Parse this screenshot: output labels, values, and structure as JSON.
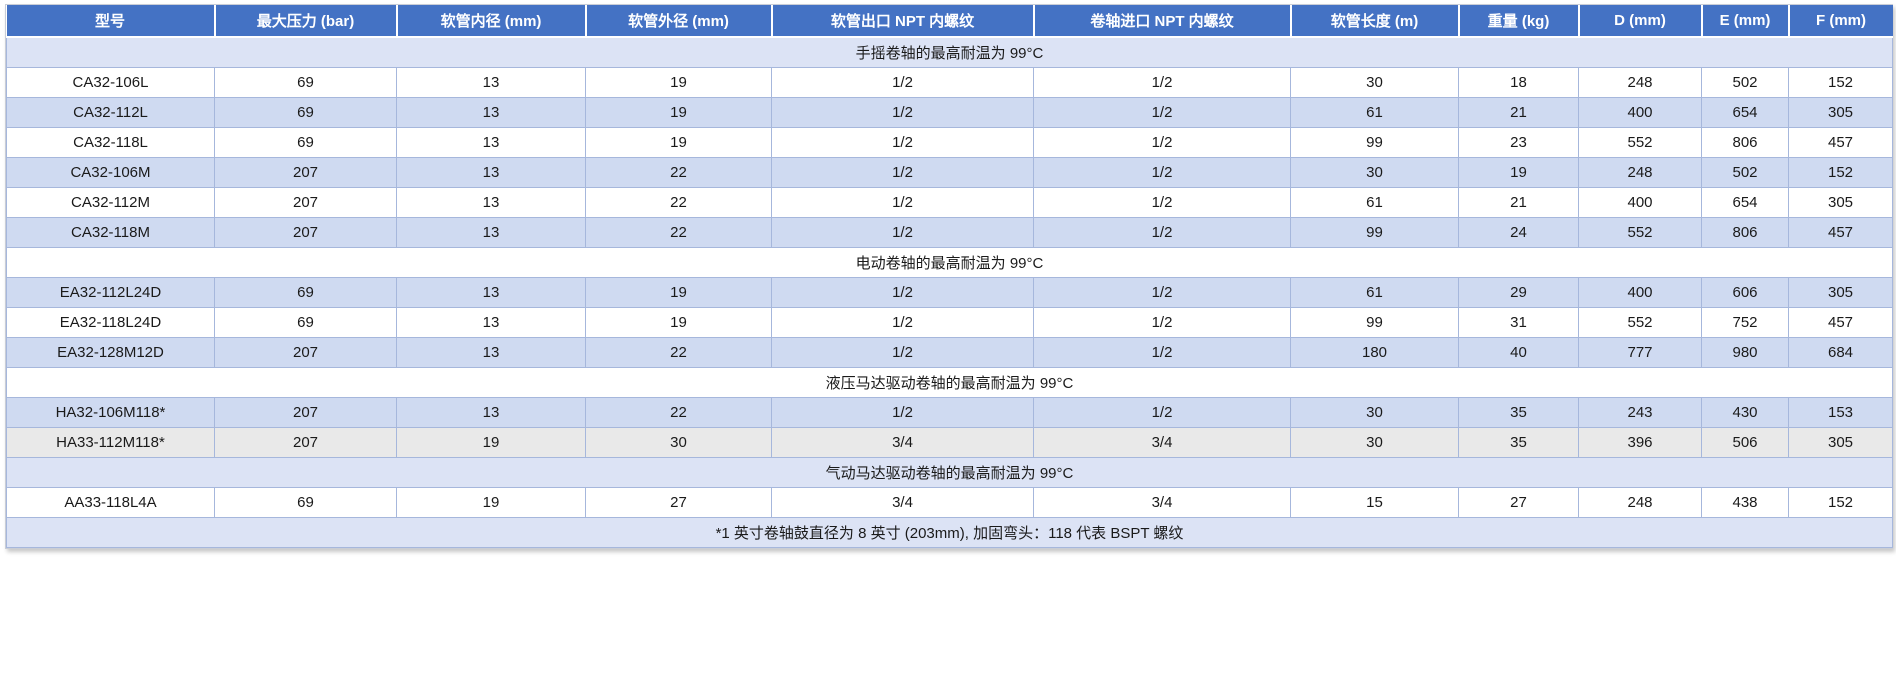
{
  "colors": {
    "header_bg": "#4472C4",
    "header_text": "#FFFFFF",
    "stripe": "#CFDAF1",
    "section": "#DCE3F5",
    "grayrow": "#E9E9E9",
    "border": "#A6B7DC"
  },
  "table": {
    "columns": [
      "型号",
      "最大压力 (bar)",
      "软管内径 (mm)",
      "软管外径 (mm)",
      "软管出口 NPT 内螺纹",
      "卷轴进口 NPT 内螺纹",
      "软管长度 (m)",
      "重量 (kg)",
      "D (mm)",
      "E (mm)",
      "F (mm)"
    ],
    "rows": [
      {
        "type": "section",
        "bg": "lavender",
        "label": "手摇卷轴的最高耐温为 99°C"
      },
      {
        "type": "data",
        "bg": "white",
        "model": "CA32-106L",
        "values": [
          "69",
          "13",
          "19",
          "1/2",
          "1/2",
          "30",
          "18",
          "248",
          "502",
          "152"
        ]
      },
      {
        "type": "data",
        "bg": "blue",
        "model": "CA32-112L",
        "values": [
          "69",
          "13",
          "19",
          "1/2",
          "1/2",
          "61",
          "21",
          "400",
          "654",
          "305"
        ]
      },
      {
        "type": "data",
        "bg": "white",
        "model": "CA32-118L",
        "values": [
          "69",
          "13",
          "19",
          "1/2",
          "1/2",
          "99",
          "23",
          "552",
          "806",
          "457"
        ]
      },
      {
        "type": "data",
        "bg": "blue",
        "model": "CA32-106M",
        "values": [
          "207",
          "13",
          "22",
          "1/2",
          "1/2",
          "30",
          "19",
          "248",
          "502",
          "152"
        ]
      },
      {
        "type": "data",
        "bg": "white",
        "model": "CA32-112M",
        "values": [
          "207",
          "13",
          "22",
          "1/2",
          "1/2",
          "61",
          "21",
          "400",
          "654",
          "305"
        ]
      },
      {
        "type": "data",
        "bg": "blue",
        "model": "CA32-118M",
        "values": [
          "207",
          "13",
          "22",
          "1/2",
          "1/2",
          "99",
          "24",
          "552",
          "806",
          "457"
        ]
      },
      {
        "type": "section",
        "bg": "white",
        "label": "电动卷轴的最高耐温为 99°C"
      },
      {
        "type": "data",
        "bg": "blue",
        "model": "EA32-112L24D",
        "values": [
          "69",
          "13",
          "19",
          "1/2",
          "1/2",
          "61",
          "29",
          "400",
          "606",
          "305"
        ]
      },
      {
        "type": "data",
        "bg": "white",
        "model": "EA32-118L24D",
        "values": [
          "69",
          "13",
          "19",
          "1/2",
          "1/2",
          "99",
          "31",
          "552",
          "752",
          "457"
        ]
      },
      {
        "type": "data",
        "bg": "blue",
        "model": "EA32-128M12D",
        "values": [
          "207",
          "13",
          "22",
          "1/2",
          "1/2",
          "180",
          "40",
          "777",
          "980",
          "684"
        ]
      },
      {
        "type": "section",
        "bg": "white",
        "label": "液压马达驱动卷轴的最高耐温为 99°C"
      },
      {
        "type": "data",
        "bg": "blue",
        "model": "HA32-106M118*",
        "values": [
          "207",
          "13",
          "22",
          "1/2",
          "1/2",
          "30",
          "35",
          "243",
          "430",
          "153"
        ]
      },
      {
        "type": "data",
        "bg": "gray",
        "model": "HA33-112M118*",
        "values": [
          "207",
          "19",
          "30",
          "3/4",
          "3/4",
          "30",
          "35",
          "396",
          "506",
          "305"
        ]
      },
      {
        "type": "section",
        "bg": "lavender",
        "label": "气动马达驱动卷轴的最高耐温为 99°C"
      },
      {
        "type": "data",
        "bg": "white",
        "model": "AA33-118L4A",
        "values": [
          "69",
          "19",
          "27",
          "3/4",
          "3/4",
          "15",
          "27",
          "248",
          "438",
          "152"
        ]
      },
      {
        "type": "footnote",
        "bg": "lavender",
        "label": "*1 英寸卷轴鼓直径为 8 英寸 (203mm), 加固弯头：118 代表 BSPT 螺纹"
      }
    ]
  }
}
